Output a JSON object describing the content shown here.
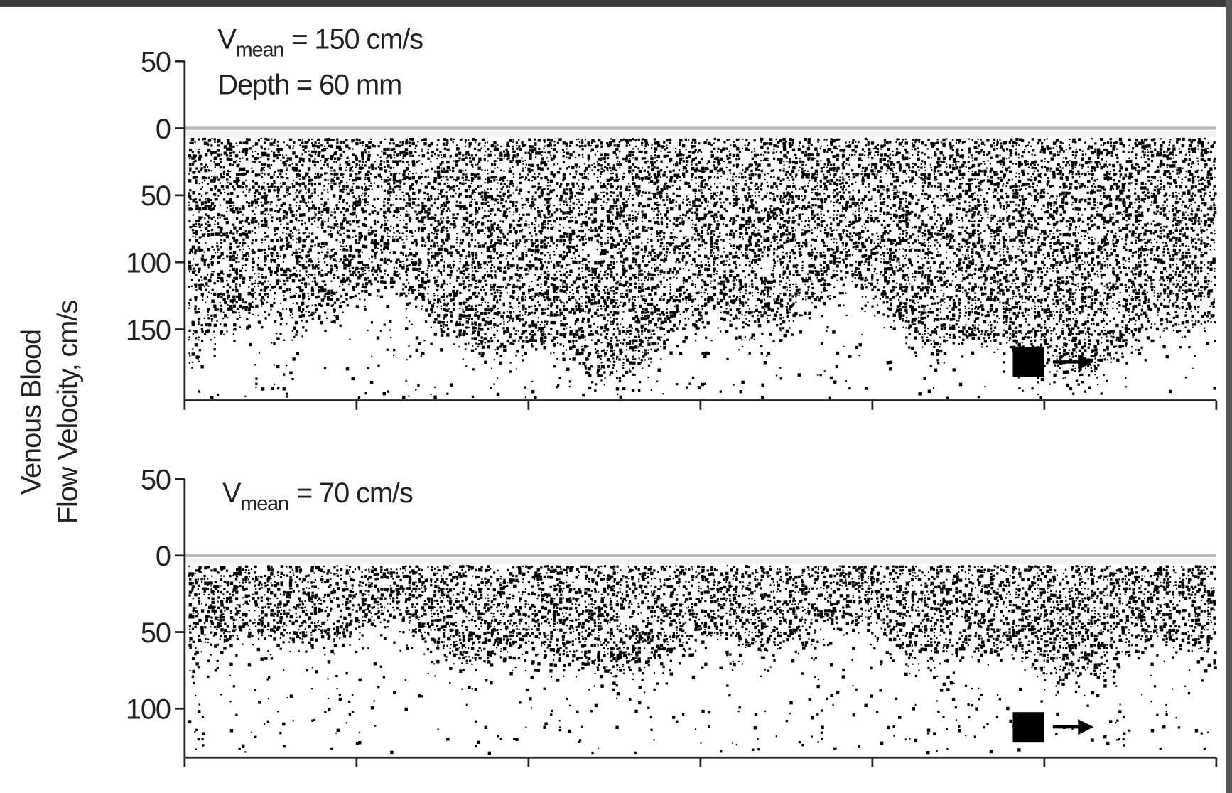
{
  "y_label": [
    "Venous Blood",
    "Flow Velocity, cm/s"
  ],
  "chart_data": [
    {
      "type": "spectrogram",
      "annotations": [
        {
          "symbol": "V",
          "subscript": "mean",
          "text": "= 150 cm/s"
        },
        {
          "text": "Depth = 60 mm"
        }
      ],
      "ylim": [
        -50,
        203
      ],
      "yticks": [
        {
          "value": -50,
          "label": "50"
        },
        0,
        50,
        100,
        150
      ],
      "xlim": [
        0,
        6
      ],
      "xticks": [
        0,
        1,
        2,
        3,
        4,
        5,
        6
      ],
      "color": "#000000",
      "zero_line_color": "#bbbbbb"
    },
    {
      "type": "spectrogram",
      "annotations": [
        {
          "symbol": "V",
          "subscript": "mean",
          "text": "= 70 cm/s"
        }
      ],
      "ylim": [
        -50,
        132
      ],
      "yticks": [
        {
          "value": -50,
          "label": "50"
        },
        0,
        50,
        100
      ],
      "xlim": [
        0,
        6
      ],
      "xticks": [
        0,
        1,
        2,
        3,
        4,
        5,
        6
      ],
      "color": "#000000",
      "zero_line_color": "#bbbbbb"
    }
  ]
}
